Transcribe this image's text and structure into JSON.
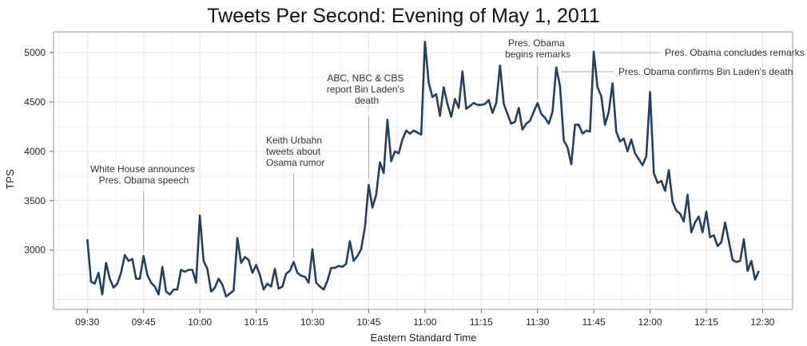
{
  "chart_data": {
    "type": "line",
    "title": "Tweets Per Second: Evening of May 1, 2011",
    "xlabel": "Eastern Standard Time",
    "ylabel": "TPS",
    "x_unit": "minutes after 09:30",
    "xlim": [
      -9,
      188
    ],
    "ylim": [
      2400,
      5210
    ],
    "grid": true,
    "x_ticks": [
      {
        "value": 0,
        "label": "09:30"
      },
      {
        "value": 15,
        "label": "09:45"
      },
      {
        "value": 30,
        "label": "10:00"
      },
      {
        "value": 45,
        "label": "10:15"
      },
      {
        "value": 60,
        "label": "10:30"
      },
      {
        "value": 75,
        "label": "10:45"
      },
      {
        "value": 90,
        "label": "11:00"
      },
      {
        "value": 105,
        "label": "11:15"
      },
      {
        "value": 120,
        "label": "11:30"
      },
      {
        "value": 135,
        "label": "11:45"
      },
      {
        "value": 150,
        "label": "12:00"
      },
      {
        "value": 165,
        "label": "12:15"
      },
      {
        "value": 180,
        "label": "12:30"
      }
    ],
    "y_ticks": [
      {
        "value": 3000,
        "label": "3000"
      },
      {
        "value": 3500,
        "label": "3500"
      },
      {
        "value": 4000,
        "label": "4000"
      },
      {
        "value": 4500,
        "label": "4500"
      },
      {
        "value": 5000,
        "label": "5000"
      }
    ],
    "series": [
      {
        "name": "TPS",
        "color": "#25405f",
        "values": [
          3110,
          2680,
          2660,
          2770,
          2550,
          2870,
          2710,
          2620,
          2660,
          2770,
          2950,
          2890,
          2910,
          2710,
          2710,
          2940,
          2750,
          2670,
          2630,
          2550,
          2830,
          2580,
          2550,
          2600,
          2600,
          2800,
          2780,
          2800,
          2800,
          2670,
          3350,
          2890,
          2810,
          2580,
          2620,
          2710,
          2650,
          2530,
          2560,
          2590,
          3120,
          2870,
          2930,
          2900,
          2770,
          2850,
          2750,
          2600,
          2660,
          2630,
          2810,
          2610,
          2630,
          2760,
          2790,
          2880,
          2770,
          2740,
          2730,
          2670,
          3010,
          2670,
          2630,
          2600,
          2690,
          2820,
          2820,
          2840,
          2830,
          2860,
          3090,
          2890,
          2940,
          3010,
          3230,
          3660,
          3430,
          3560,
          3890,
          3780,
          4320,
          3900,
          4000,
          3980,
          4120,
          4210,
          4180,
          4210,
          4190,
          4170,
          5110,
          4700,
          4550,
          4580,
          4360,
          4650,
          4480,
          4350,
          4530,
          4440,
          4810,
          4430,
          4460,
          4490,
          4470,
          4470,
          4480,
          4520,
          4390,
          4490,
          4870,
          4480,
          4380,
          4280,
          4300,
          4440,
          4220,
          4280,
          4310,
          4400,
          4490,
          4380,
          4340,
          4280,
          4400,
          4850,
          4660,
          4110,
          4040,
          3870,
          4270,
          4270,
          4180,
          4210,
          4200,
          5010,
          4650,
          4560,
          4270,
          4400,
          4690,
          4200,
          4100,
          4130,
          4000,
          4120,
          3980,
          3920,
          3860,
          3950,
          4600,
          3780,
          3680,
          3700,
          3600,
          3810,
          3490,
          3400,
          3370,
          3290,
          3560,
          3180,
          3280,
          3340,
          3180,
          3390,
          3130,
          3150,
          3040,
          3080,
          3280,
          3090,
          2900,
          2880,
          2890,
          3110,
          2790,
          2890,
          2700,
          2790
        ]
      }
    ],
    "annotations": [
      {
        "lines": [
          "White House announces",
          "Pres. Obama speech"
        ],
        "x": 15
      },
      {
        "lines": [
          "Keith Urbahn",
          "tweets about",
          "Osama rumor"
        ],
        "x": 55
      },
      {
        "lines": [
          "ABC, NBC & CBS",
          "report Bin Laden's",
          "death"
        ],
        "x": 75
      },
      {
        "lines": [
          "Pres. Obama",
          "begins remarks"
        ],
        "x": 120
      },
      {
        "lines": [
          "Pres. Obama confirms Bin Laden's death"
        ],
        "x": 125
      },
      {
        "lines": [
          "Pres. Obama concludes remarks"
        ],
        "x": 135
      }
    ]
  }
}
